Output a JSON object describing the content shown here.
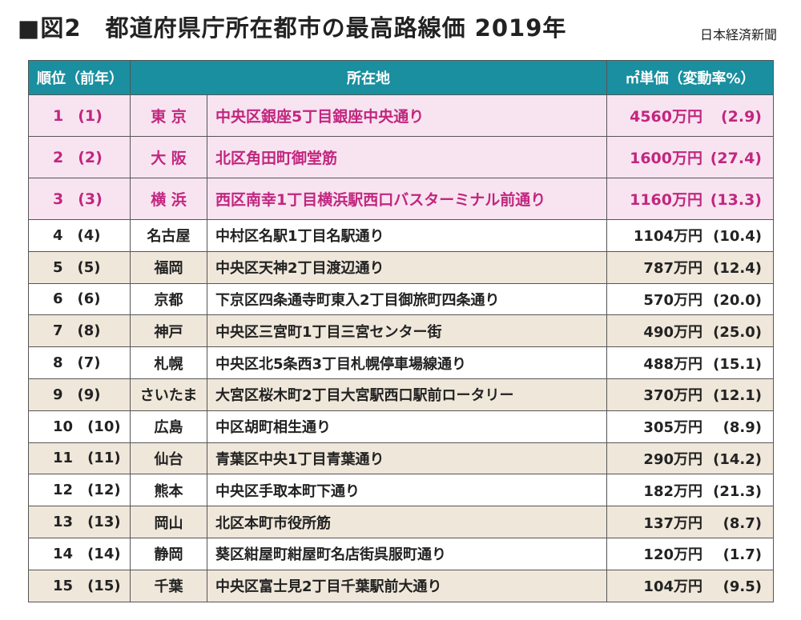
{
  "header": {
    "title": "■図2　都道府県庁所在都市の最高路線価 2019年",
    "source": "日本経済新聞"
  },
  "table": {
    "columns": [
      "順位（前年）",
      "所在地",
      "㎡単価（変動率%）"
    ],
    "rows": [
      [
        "1",
        "(1)",
        "東 京",
        "中央区銀座5丁目銀座中央通り",
        "4560万円",
        "(2.9)"
      ],
      [
        "2",
        "(2)",
        "大 阪",
        "北区角田町御堂筋",
        "1600万円",
        "(27.4)"
      ],
      [
        "3",
        "(3)",
        "横 浜",
        "西区南幸1丁目横浜駅西口バスターミナル前通り",
        "1160万円",
        "(13.3)"
      ],
      [
        "4",
        "(4)",
        "名古屋",
        "中村区名駅1丁目名駅通り",
        "1104万円",
        "(10.4)"
      ],
      [
        "5",
        "(5)",
        "福岡",
        "中央区天神2丁目渡辺通り",
        "787万円",
        "(12.4)"
      ],
      [
        "6",
        "(6)",
        "京都",
        "下京区四条通寺町東入2丁目御旅町四条通り",
        "570万円",
        "(20.0)"
      ],
      [
        "7",
        "(8)",
        "神戸",
        "中央区三宮町1丁目三宮センター街",
        "490万円",
        "(25.0)"
      ],
      [
        "8",
        "(7)",
        "札幌",
        "中央区北5条西3丁目札幌停車場線通り",
        "488万円",
        "(15.1)"
      ],
      [
        "9",
        "(9)",
        "さいたま",
        "大宮区桜木町2丁目大宮駅西口駅前ロータリー",
        "370万円",
        "(12.1)"
      ],
      [
        "10",
        "(10)",
        "広島",
        "中区胡町相生通り",
        "305万円",
        "(8.9)"
      ],
      [
        "11",
        "(11)",
        "仙台",
        "青葉区中央1丁目青葉通り",
        "290万円",
        "(14.2)"
      ],
      [
        "12",
        "(12)",
        "熊本",
        "中央区手取本町下通り",
        "182万円",
        "(21.3)"
      ],
      [
        "13",
        "(13)",
        "岡山",
        "北区本町市役所筋",
        "137万円",
        "(8.7)"
      ],
      [
        "14",
        "(14)",
        "静岡",
        "葵区紺屋町紺屋町名店街呉服町通り",
        "120万円",
        "(1.7)"
      ],
      [
        "15",
        "(15)",
        "千葉",
        "中央区富士見2丁目千葉駅前大通り",
        "104万円",
        "(9.5)"
      ]
    ]
  }
}
